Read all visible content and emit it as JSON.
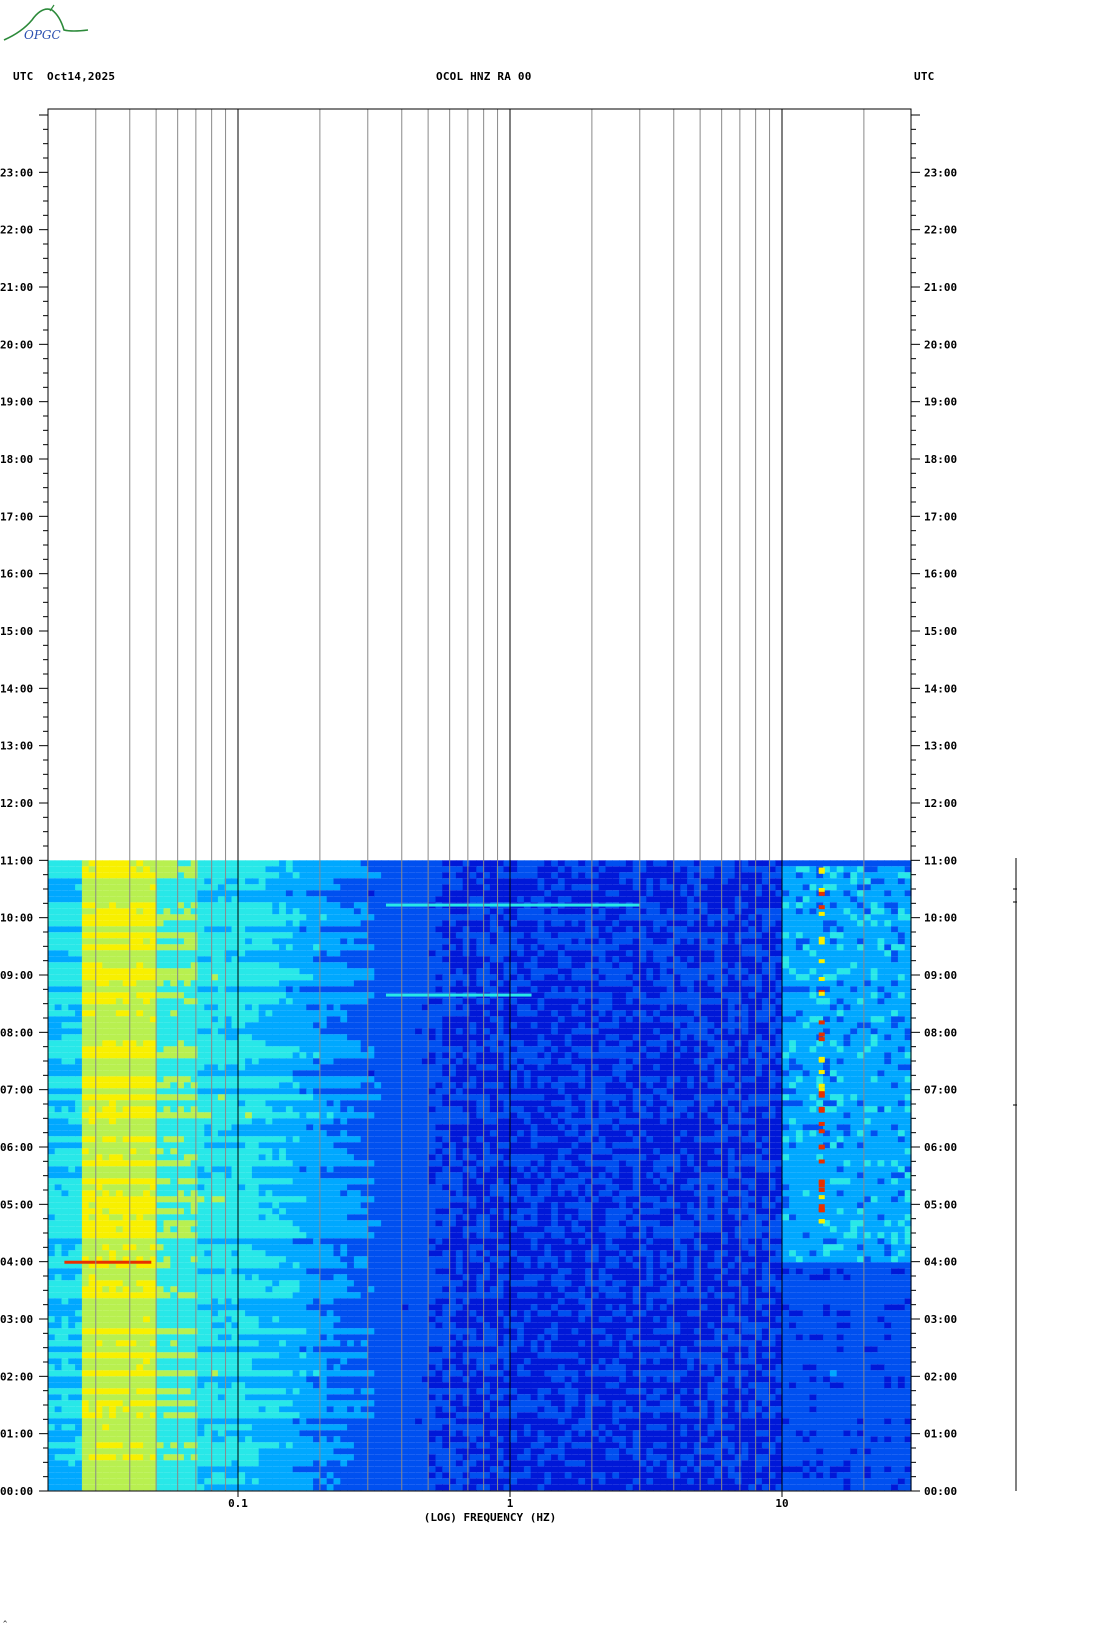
{
  "header": {
    "left_tz": "UTC",
    "date": "Oct14,2025",
    "title": "OCOL HNZ RA 00",
    "right_tz": "UTC"
  },
  "logo": {
    "text": "OPGC",
    "icon": "volcano-logo-icon",
    "color": "#2c8a3a"
  },
  "chart_data": {
    "type": "heatmap",
    "title": "OCOL HNZ RA 00",
    "xlabel": "(LOG) FREQUENCY (HZ)",
    "ylabel": "UTC",
    "x_scale": "log",
    "xlim": [
      0.02,
      30
    ],
    "ylim": [
      "00:00",
      "24:00"
    ],
    "x_tick_labels": [
      {
        "value": 0.1,
        "label": "0.1"
      },
      {
        "value": 1,
        "label": "1"
      },
      {
        "value": 10,
        "label": "10"
      }
    ],
    "y_tick_labels": [
      "00:00",
      "01:00",
      "02:00",
      "03:00",
      "04:00",
      "05:00",
      "06:00",
      "07:00",
      "08:00",
      "09:00",
      "10:00",
      "11:00",
      "12:00",
      "13:00",
      "14:00",
      "15:00",
      "16:00",
      "17:00",
      "18:00",
      "19:00",
      "20:00",
      "21:00",
      "22:00",
      "23:00"
    ],
    "data_end_time": "11:00",
    "grid": true,
    "colormap": [
      "#0018d8",
      "#0050f0",
      "#00a8ff",
      "#28e8e8",
      "#b8f050",
      "#f8f000",
      "#e83000"
    ],
    "notes_bands": [
      {
        "range_hz": [
          0.02,
          0.05
        ],
        "level": "high"
      },
      {
        "range_hz": [
          0.05,
          0.1
        ],
        "level": "medium"
      },
      {
        "range_hz": [
          0.1,
          0.5
        ],
        "level": "low-medium"
      },
      {
        "range_hz": [
          0.5,
          10
        ],
        "level": "low"
      },
      {
        "range_hz": [
          10,
          30
        ],
        "level": "variable, strong lines ~14 Hz"
      }
    ]
  }
}
